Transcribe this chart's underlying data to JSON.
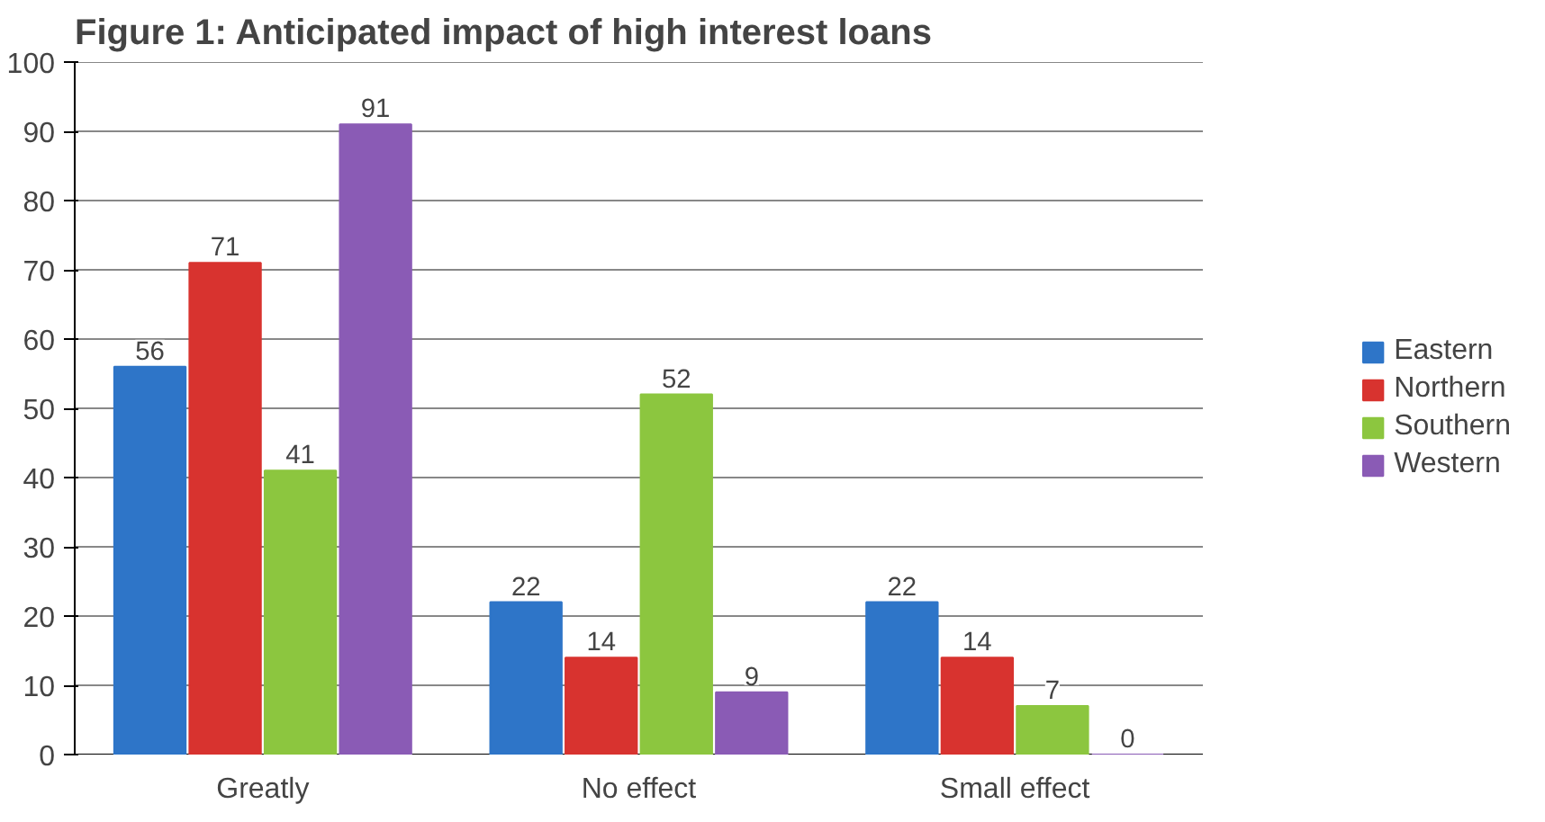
{
  "chart_data": {
    "type": "bar",
    "title": "Figure 1: Anticipated impact of high interest loans",
    "categories": [
      "Greatly",
      "No effect",
      "Small effect"
    ],
    "series": [
      {
        "name": "Eastern",
        "color": "#2e75c8",
        "values": [
          56,
          22,
          22
        ]
      },
      {
        "name": "Northern",
        "color": "#d8332f",
        "values": [
          71,
          14,
          14
        ]
      },
      {
        "name": "Southern",
        "color": "#8cc63f",
        "values": [
          41,
          52,
          7
        ]
      },
      {
        "name": "Western",
        "color": "#8a5bb5",
        "values": [
          91,
          9,
          0
        ]
      }
    ],
    "ylim": [
      0,
      100
    ],
    "yticks": [
      0,
      10,
      20,
      30,
      40,
      50,
      60,
      70,
      80,
      90,
      100
    ],
    "grid": "y",
    "legend": "right",
    "data_labels": true
  }
}
